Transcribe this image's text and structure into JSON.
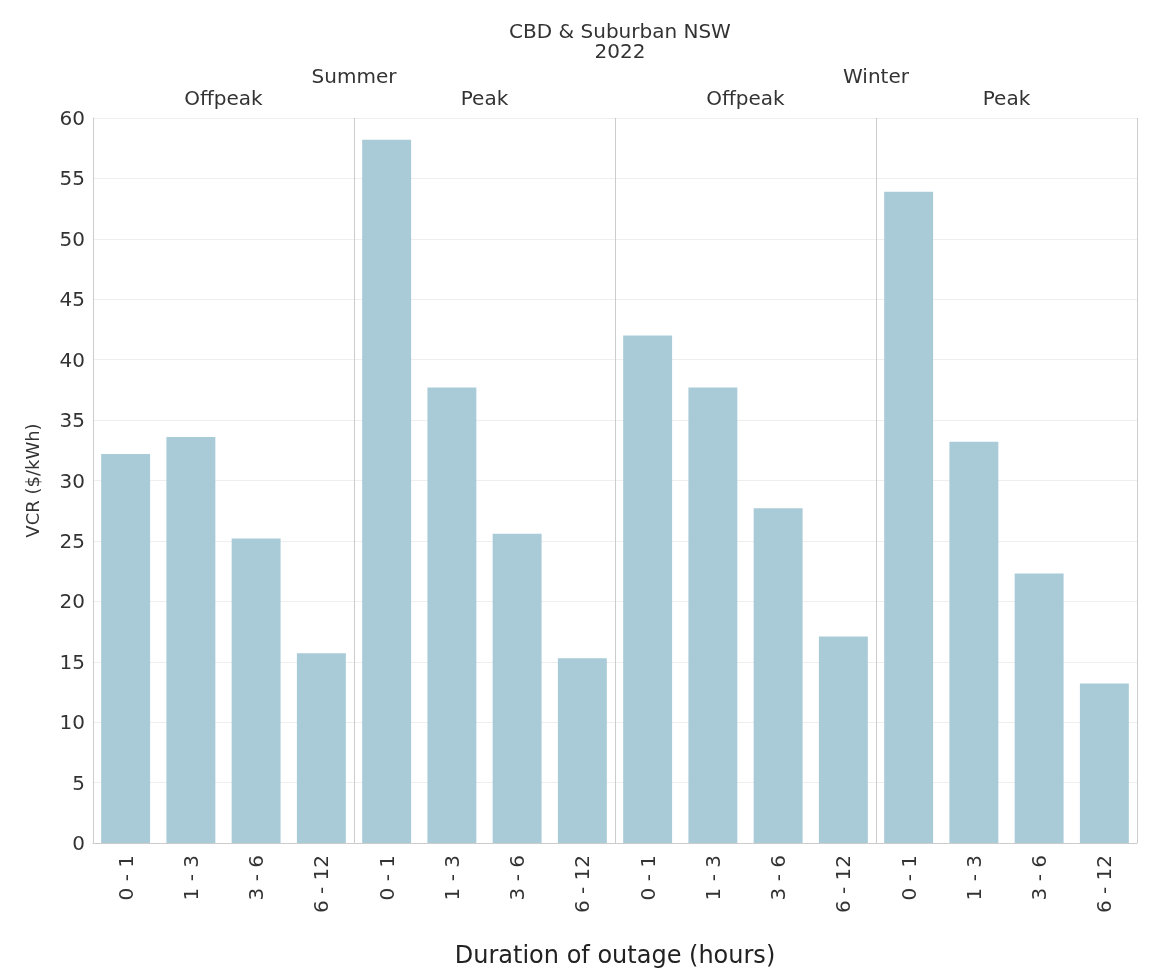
{
  "chart_data": {
    "type": "bar",
    "title": "CBD & Suburban NSW",
    "subtitle": "2022",
    "annotations": [
      "Summer",
      "Winter",
      "Offpeak",
      "Peak",
      "Offpeak",
      "Peak"
    ],
    "categories": [
      "0 - 1",
      "1 - 3",
      "3 - 6",
      "6 - 12",
      "0 - 1",
      "1 - 3",
      "3 - 6",
      "6 - 12",
      "0 - 1",
      "1 - 3",
      "3 - 6",
      "6 - 12",
      "0 - 1",
      "1 - 3",
      "3 - 6",
      "6 - 12"
    ],
    "values": [
      32.2,
      33.6,
      25.2,
      15.7,
      58.2,
      37.7,
      25.6,
      15.3,
      42.0,
      37.7,
      27.7,
      17.1,
      53.9,
      33.2,
      22.3,
      13.2
    ],
    "color": "#a9cbd8",
    "xlabel": "Duration of outage (hours)",
    "ylabel": "VCR ($/kWh)",
    "ylim": [
      0,
      60
    ],
    "yticks": [
      0,
      5,
      10,
      15,
      20,
      25,
      30,
      35,
      40,
      45,
      50,
      55,
      60
    ],
    "grid": "y"
  }
}
